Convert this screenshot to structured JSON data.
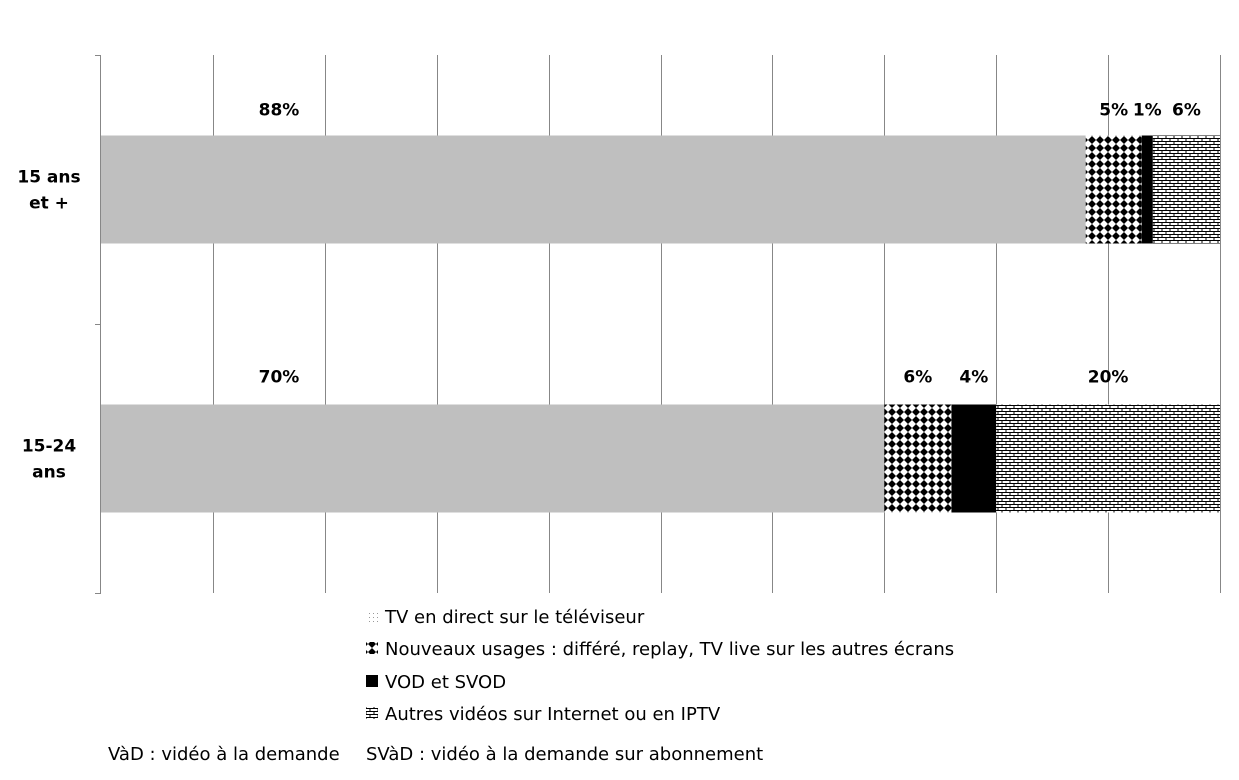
{
  "chart_data": {
    "type": "bar",
    "orientation": "horizontal",
    "stacked": true,
    "categories": [
      "15 ans et +",
      "15-24 ans"
    ],
    "category_lines": [
      [
        "15 ans",
        "et +"
      ],
      [
        "15-24",
        "ans"
      ]
    ],
    "series": [
      {
        "name": "TV en direct sur le téléviseur",
        "values": [
          88,
          70
        ],
        "labels": [
          "88%",
          "70%"
        ],
        "pattern": "dots-light",
        "color": "#bfbfbf"
      },
      {
        "name": "Nouveaux usages : différé, replay, TV live sur les autres écrans",
        "values": [
          5,
          6
        ],
        "labels": [
          "5%",
          "6%"
        ],
        "pattern": "diamonds",
        "color": "#000000"
      },
      {
        "name": "VOD et SVOD",
        "values": [
          1,
          4
        ],
        "labels": [
          "1%",
          "4%"
        ],
        "pattern": "solid",
        "color": "#000000"
      },
      {
        "name": "Autres vidéos sur Internet ou en IPTV",
        "values": [
          6,
          20
        ],
        "labels": [
          "6%",
          "20%"
        ],
        "pattern": "bricks",
        "color": "#000000"
      }
    ],
    "xlim": [
      0,
      100
    ],
    "grid": true,
    "legend_position": "bottom",
    "axis_labels_shown": false
  },
  "footnote": {
    "left": "VàD : vidéo à la demande",
    "right": "SVàD : vidéo à la demande sur abonnement"
  }
}
